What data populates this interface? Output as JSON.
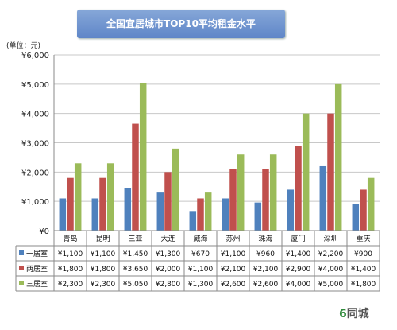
{
  "chart_data": {
    "type": "bar",
    "title": "全国宜居城市TOP10平均租金水平",
    "unit_label": "(单位：元)",
    "categories": [
      "青岛",
      "昆明",
      "三亚",
      "大连",
      "威海",
      "苏州",
      "珠海",
      "厦门",
      "深圳",
      "重庆"
    ],
    "ylim": [
      0,
      6000
    ],
    "yticks": [
      "¥0",
      "¥1,000",
      "¥2,000",
      "¥3,000",
      "¥4,000",
      "¥5,000",
      "¥6,000"
    ],
    "ytick_values": [
      0,
      1000,
      2000,
      3000,
      4000,
      5000,
      6000
    ],
    "grid": true,
    "legend": "table-left",
    "series": [
      {
        "name": "一居室",
        "color": "#4f81bd",
        "values": [
          1100,
          1100,
          1450,
          1300,
          670,
          1100,
          960,
          1400,
          2200,
          900
        ],
        "labels": [
          "¥1,100",
          "¥1,100",
          "¥1,450",
          "¥1,300",
          "¥670",
          "¥1,100",
          "¥960",
          "¥1,400",
          "¥2,200",
          "¥900"
        ]
      },
      {
        "name": "两居室",
        "color": "#c0504d",
        "values": [
          1800,
          1800,
          3650,
          2000,
          1100,
          2100,
          2100,
          2900,
          4000,
          1400
        ],
        "labels": [
          "¥1,800",
          "¥1,800",
          "¥3,650",
          "¥2,000",
          "¥1,100",
          "¥2,100",
          "¥2,100",
          "¥2,900",
          "¥4,000",
          "¥1,400"
        ]
      },
      {
        "name": "三居室",
        "color": "#9bbb59",
        "values": [
          2300,
          2300,
          5050,
          2800,
          1300,
          2600,
          2600,
          4000,
          5000,
          1800
        ],
        "labels": [
          "¥2,300",
          "¥2,300",
          "¥5,050",
          "¥2,800",
          "¥1,300",
          "¥2,600",
          "¥2,600",
          "¥4,000",
          "¥5,000",
          "¥1,800"
        ]
      }
    ]
  },
  "watermark": {
    "six": "6",
    "text": "同城"
  }
}
